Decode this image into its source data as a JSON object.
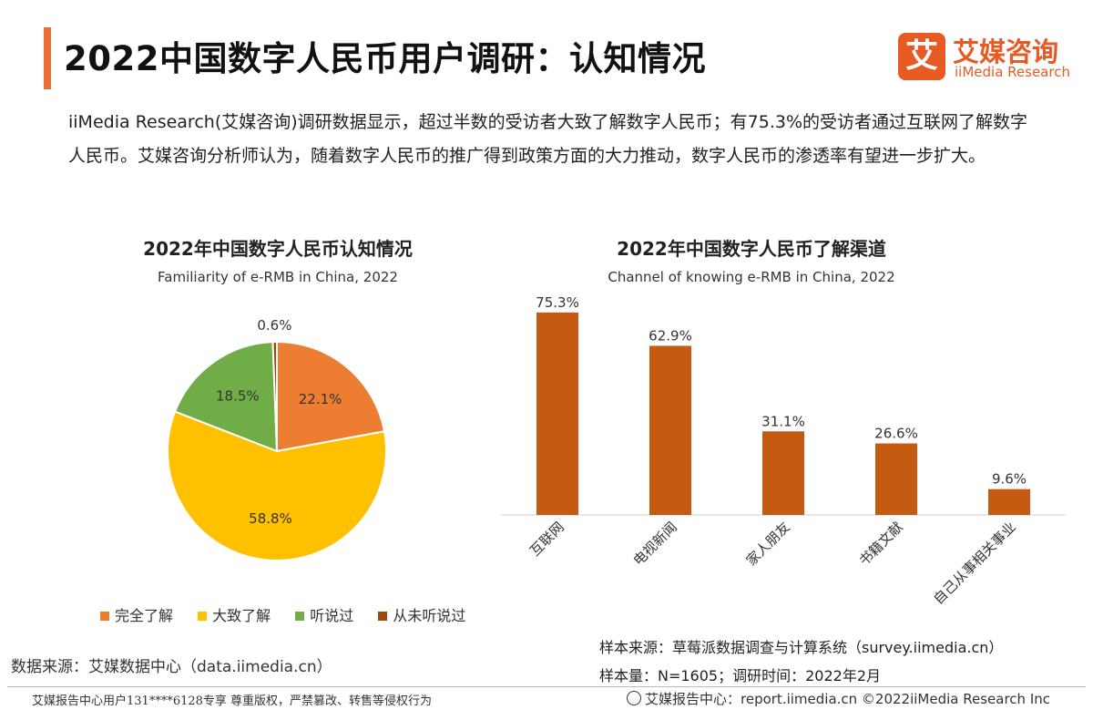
{
  "header": {
    "title": "2022中国数字人民币用户调研：认知情况",
    "logo_mark": "艾",
    "logo_cn": "艾媒咨询",
    "logo_en": "iiMedia Research"
  },
  "intro": "iiMedia Research(艾媒咨询)调研数据显示，超过半数的受访者大致了解数字人民币；有75.3%的受访者通过互联网了解数字人民币。艾媒咨询分析师认为，随着数字人民币的推广得到政策方面的大力推动，数字人民币的渗透率有望进一步扩大。",
  "chart_data": [
    {
      "type": "pie",
      "title": "2022年中国数字人民币认知情况",
      "subtitle": "Familiarity of e-RMB in China, 2022",
      "labels": [
        "完全了解",
        "大致了解",
        "听说过",
        "从未听说过"
      ],
      "values": [
        22.1,
        58.8,
        18.5,
        0.6
      ],
      "value_labels": [
        "22.1%",
        "58.8%",
        "18.5%",
        "0.6%"
      ],
      "colors": [
        "#ed7d31",
        "#ffc000",
        "#70ad47",
        "#9e480e"
      ],
      "legend_position": "bottom"
    },
    {
      "type": "bar",
      "title": "2022年中国数字人民币了解渠道",
      "subtitle": "Channel of knowing e-RMB in China, 2022",
      "categories": [
        "互联网",
        "电视新闻",
        "家人朋友",
        "书籍文献",
        "自己从事相关事业"
      ],
      "values": [
        75.3,
        62.9,
        31.1,
        26.6,
        9.6
      ],
      "value_labels": [
        "75.3%",
        "62.9%",
        "31.1%",
        "26.6%",
        "9.6%"
      ],
      "color": "#c55a11",
      "ylim": [
        0,
        80
      ]
    }
  ],
  "source_left": "数据来源：艾媒数据中心（data.iimedia.cn）",
  "sample_source": "样本来源：草莓派数据调查与计算系统（survey.iimedia.cn）",
  "sample_size": "样本量：N=1605；调研时间：2022年2月",
  "footer": {
    "left": "艾媒报告中心用户131****6128专享 尊重版权，严禁篡改、转售等侵权行为",
    "right": "艾媒报告中心：report.iimedia.cn  ©2022iiMedia Research Inc"
  }
}
